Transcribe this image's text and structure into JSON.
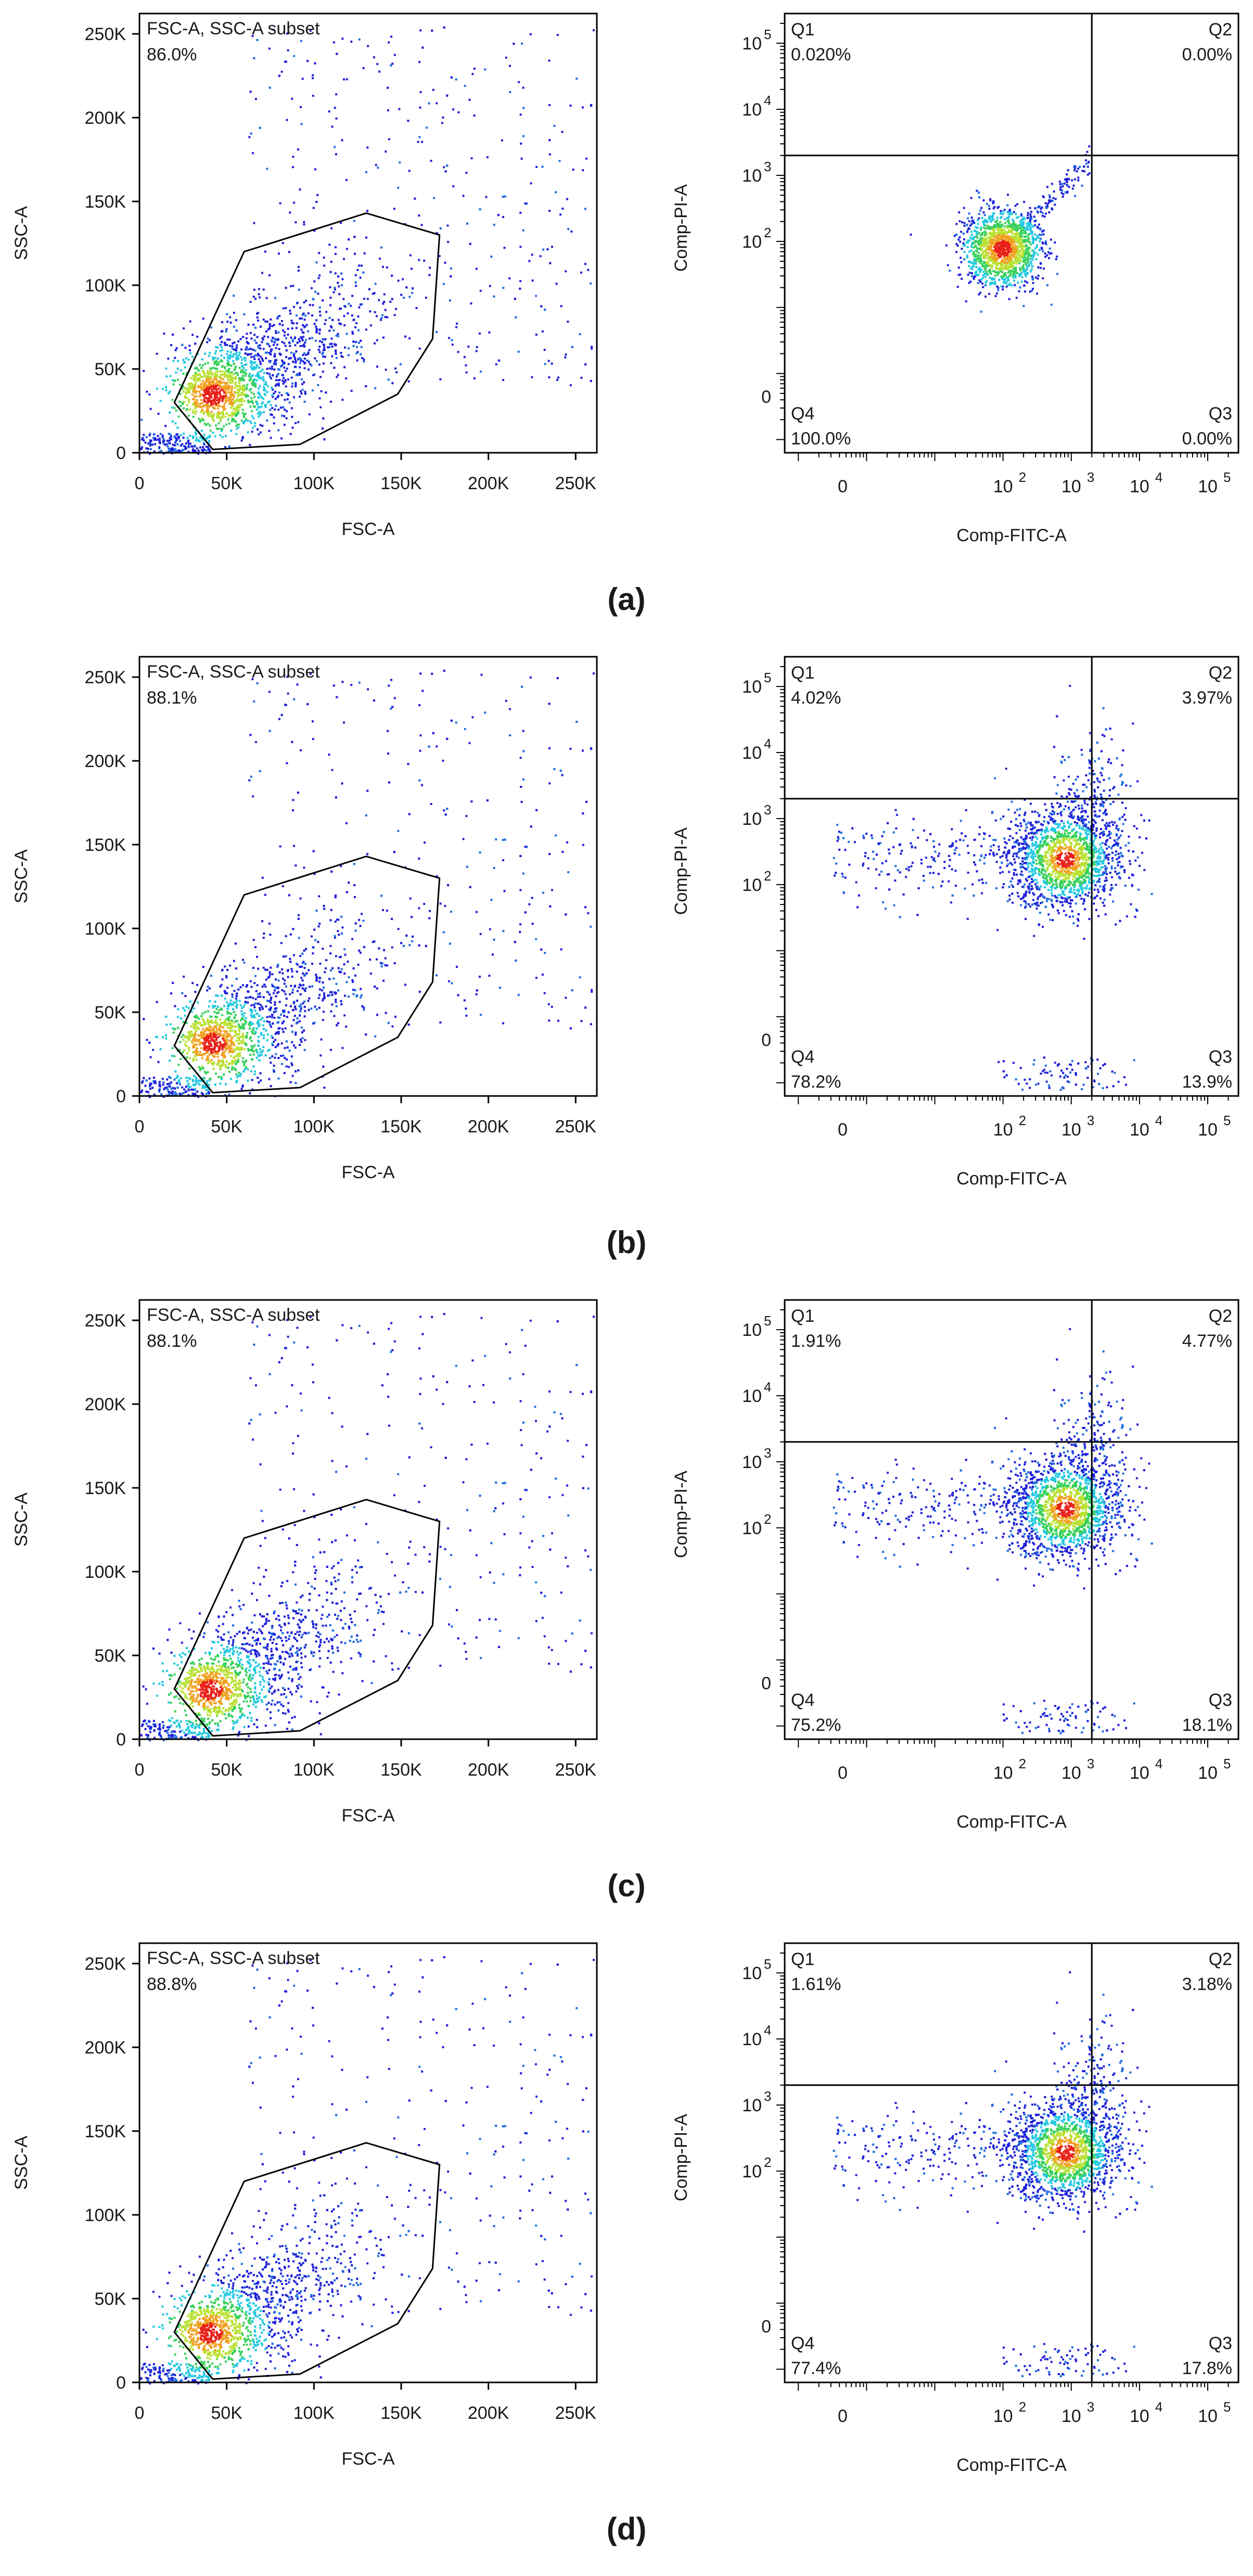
{
  "chart_data": [
    {
      "panel": "(a)",
      "scatter": {
        "type": "scatter",
        "gate_name": "FSC-A, SSC-A subset",
        "gate_percent": "86.0%",
        "xlabel": "FSC-A",
        "ylabel": "SSC-A",
        "xlim": [
          0,
          262144
        ],
        "ylim": [
          0,
          262144
        ],
        "x_ticks": [
          0,
          50000,
          100000,
          150000,
          200000,
          250000
        ],
        "x_tick_labels": [
          "0",
          "50K",
          "100K",
          "150K",
          "200K",
          "250K"
        ],
        "y_ticks": [
          0,
          50000,
          100000,
          150000,
          200000,
          250000
        ],
        "y_tick_labels": [
          "0",
          "50K",
          "100K",
          "150K",
          "200K",
          "250K"
        ],
        "gate_polygon": [
          [
            20000,
            30000
          ],
          [
            60000,
            120000
          ],
          [
            130000,
            143000
          ],
          [
            172000,
            130000
          ],
          [
            168000,
            68000
          ],
          [
            148000,
            35000
          ],
          [
            92000,
            5000
          ],
          [
            42000,
            2000
          ]
        ],
        "cluster_center": [
          42000,
          35000
        ]
      },
      "quadrant": {
        "type": "scatter",
        "xlabel": "Comp-FITC-A",
        "ylabel": "Comp-PI-A",
        "quadrant_gate": {
          "x": 2000,
          "y": 2000
        },
        "quadrants": [
          {
            "name": "Q1",
            "percent": "0.020%"
          },
          {
            "name": "Q2",
            "percent": "0.00%"
          },
          {
            "name": "Q3",
            "percent": "0.00%"
          },
          {
            "name": "Q4",
            "percent": "100.0%"
          }
        ],
        "x_tick_labels": [
          "0",
          "10",
          "10",
          "10",
          "10"
        ],
        "x_tick_exponents": [
          "",
          "2",
          "3",
          "4",
          "5"
        ],
        "y_tick_labels": [
          "0",
          "10",
          "10",
          "10",
          "10"
        ],
        "y_tick_exponents": [
          "",
          "2",
          "3",
          "4",
          "5"
        ],
        "cluster_center": [
          95,
          80
        ]
      }
    },
    {
      "panel": "(b)",
      "scatter": {
        "type": "scatter",
        "gate_name": "FSC-A, SSC-A subset",
        "gate_percent": "88.1%",
        "xlabel": "FSC-A",
        "ylabel": "SSC-A",
        "xlim": [
          0,
          262144
        ],
        "ylim": [
          0,
          262144
        ],
        "x_ticks": [
          0,
          50000,
          100000,
          150000,
          200000,
          250000
        ],
        "x_tick_labels": [
          "0",
          "50K",
          "100K",
          "150K",
          "200K",
          "250K"
        ],
        "y_ticks": [
          0,
          50000,
          100000,
          150000,
          200000,
          250000
        ],
        "y_tick_labels": [
          "0",
          "50K",
          "100K",
          "150K",
          "200K",
          "250K"
        ],
        "gate_polygon": [
          [
            20000,
            30000
          ],
          [
            60000,
            120000
          ],
          [
            130000,
            143000
          ],
          [
            172000,
            130000
          ],
          [
            168000,
            68000
          ],
          [
            148000,
            35000
          ],
          [
            92000,
            5000
          ],
          [
            42000,
            2000
          ]
        ],
        "cluster_center": [
          42000,
          32000
        ]
      },
      "quadrant": {
        "type": "scatter",
        "xlabel": "Comp-FITC-A",
        "ylabel": "Comp-PI-A",
        "quadrant_gate": {
          "x": 2000,
          "y": 2000
        },
        "quadrants": [
          {
            "name": "Q1",
            "percent": "4.02%"
          },
          {
            "name": "Q2",
            "percent": "3.97%"
          },
          {
            "name": "Q3",
            "percent": "13.9%"
          },
          {
            "name": "Q4",
            "percent": "78.2%"
          }
        ],
        "x_tick_labels": [
          "0",
          "10",
          "10",
          "10",
          "10"
        ],
        "x_tick_exponents": [
          "",
          "2",
          "3",
          "4",
          "5"
        ],
        "y_tick_labels": [
          "0",
          "10",
          "10",
          "10",
          "10"
        ],
        "y_tick_exponents": [
          "",
          "2",
          "3",
          "4",
          "5"
        ],
        "cluster_center": [
          800,
          250
        ]
      }
    },
    {
      "panel": "(c)",
      "scatter": {
        "type": "scatter",
        "gate_name": "FSC-A, SSC-A subset",
        "gate_percent": "88.1%",
        "xlabel": "FSC-A",
        "ylabel": "SSC-A",
        "xlim": [
          0,
          262144
        ],
        "ylim": [
          0,
          262144
        ],
        "x_ticks": [
          0,
          50000,
          100000,
          150000,
          200000,
          250000
        ],
        "x_tick_labels": [
          "0",
          "50K",
          "100K",
          "150K",
          "200K",
          "250K"
        ],
        "y_ticks": [
          0,
          50000,
          100000,
          150000,
          200000,
          250000
        ],
        "y_tick_labels": [
          "0",
          "50K",
          "100K",
          "150K",
          "200K",
          "250K"
        ],
        "gate_polygon": [
          [
            20000,
            30000
          ],
          [
            60000,
            120000
          ],
          [
            130000,
            143000
          ],
          [
            172000,
            130000
          ],
          [
            168000,
            68000
          ],
          [
            148000,
            35000
          ],
          [
            92000,
            5000
          ],
          [
            42000,
            2000
          ]
        ],
        "cluster_center": [
          40000,
          30000
        ]
      },
      "quadrant": {
        "type": "scatter",
        "xlabel": "Comp-FITC-A",
        "ylabel": "Comp-PI-A",
        "quadrant_gate": {
          "x": 2000,
          "y": 2000
        },
        "quadrants": [
          {
            "name": "Q1",
            "percent": "1.91%"
          },
          {
            "name": "Q2",
            "percent": "4.77%"
          },
          {
            "name": "Q3",
            "percent": "18.1%"
          },
          {
            "name": "Q4",
            "percent": "75.2%"
          }
        ],
        "x_tick_labels": [
          "0",
          "10",
          "10",
          "10",
          "10"
        ],
        "x_tick_exponents": [
          "",
          "2",
          "3",
          "4",
          "5"
        ],
        "y_tick_labels": [
          "0",
          "10",
          "10",
          "10",
          "10"
        ],
        "y_tick_exponents": [
          "",
          "2",
          "3",
          "4",
          "5"
        ],
        "cluster_center": [
          800,
          200
        ]
      }
    },
    {
      "panel": "(d)",
      "scatter": {
        "type": "scatter",
        "gate_name": "FSC-A, SSC-A subset",
        "gate_percent": "88.8%",
        "xlabel": "FSC-A",
        "ylabel": "SSC-A",
        "xlim": [
          0,
          262144
        ],
        "ylim": [
          0,
          262144
        ],
        "x_ticks": [
          0,
          50000,
          100000,
          150000,
          200000,
          250000
        ],
        "x_tick_labels": [
          "0",
          "50K",
          "100K",
          "150K",
          "200K",
          "250K"
        ],
        "y_ticks": [
          0,
          50000,
          100000,
          150000,
          200000,
          250000
        ],
        "y_tick_labels": [
          "0",
          "50K",
          "100K",
          "150K",
          "200K",
          "250K"
        ],
        "gate_polygon": [
          [
            20000,
            30000
          ],
          [
            60000,
            120000
          ],
          [
            130000,
            143000
          ],
          [
            172000,
            130000
          ],
          [
            168000,
            68000
          ],
          [
            148000,
            35000
          ],
          [
            92000,
            5000
          ],
          [
            42000,
            2000
          ]
        ],
        "cluster_center": [
          40000,
          30000
        ]
      },
      "quadrant": {
        "type": "scatter",
        "xlabel": "Comp-FITC-A",
        "ylabel": "Comp-PI-A",
        "quadrant_gate": {
          "x": 2000,
          "y": 2000
        },
        "quadrants": [
          {
            "name": "Q1",
            "percent": "1.61%"
          },
          {
            "name": "Q2",
            "percent": "3.18%"
          },
          {
            "name": "Q3",
            "percent": "17.8%"
          },
          {
            "name": "Q4",
            "percent": "77.4%"
          }
        ],
        "x_tick_labels": [
          "0",
          "10",
          "10",
          "10",
          "10"
        ],
        "x_tick_exponents": [
          "",
          "2",
          "3",
          "4",
          "5"
        ],
        "y_tick_labels": [
          "0",
          "10",
          "10",
          "10",
          "10"
        ],
        "y_tick_exponents": [
          "",
          "2",
          "3",
          "4",
          "5"
        ],
        "cluster_center": [
          800,
          200
        ]
      }
    }
  ]
}
